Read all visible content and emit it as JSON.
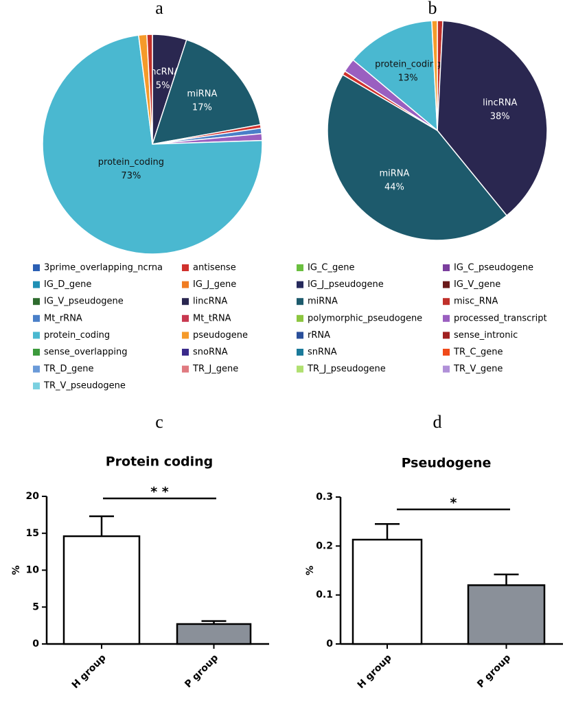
{
  "chart_data": [
    {
      "type": "pie",
      "label": "a",
      "categories": [
        "lincRNA",
        "miRNA",
        "antisense",
        "Mt_rRNA",
        "processed_transcript",
        "protein_coding",
        "pseudogene",
        "misc_RNA"
      ],
      "values": [
        5,
        17,
        0.5,
        0.8,
        1,
        73,
        1.2,
        0.8
      ],
      "value_labels": [
        "5%",
        "17%",
        null,
        null,
        null,
        "73%",
        null,
        null
      ],
      "colors": [
        "#2a2750",
        "#1d5a6c",
        "#d0312d",
        "#4a7fc8",
        "#9a5fc0",
        "#4ab8d0",
        "#f59a2a",
        "#c0302a"
      ]
    },
    {
      "type": "pie",
      "label": "b",
      "categories": [
        "misc_RNA",
        "lincRNA",
        "miRNA",
        "antisense",
        "processed_transcript",
        "protein_coding",
        "pseudogene"
      ],
      "values": [
        0.8,
        38,
        44,
        0.6,
        2,
        13,
        0.8
      ],
      "value_labels": [
        null,
        "38%",
        "44%",
        null,
        null,
        "13%",
        null
      ],
      "colors": [
        "#c0302a",
        "#2a2750",
        "#1d5a6c",
        "#d0312d",
        "#9a5fc0",
        "#4ab8d0",
        "#f59a2a"
      ]
    },
    {
      "type": "bar",
      "label": "c",
      "title": "Protein coding",
      "y_label": "%",
      "categories": [
        "H group",
        "P group"
      ],
      "values": [
        14.6,
        2.7
      ],
      "errors": [
        2.7,
        0.4
      ],
      "colors": [
        "#ffffff",
        "#8a9099"
      ],
      "ylim": [
        0,
        20
      ],
      "yticks": [
        0,
        5,
        10,
        15,
        20
      ],
      "significance": "* *"
    },
    {
      "type": "bar",
      "label": "d",
      "title": "Pseudogene",
      "y_label": "%",
      "categories": [
        "H group",
        "P group"
      ],
      "values": [
        0.213,
        0.12
      ],
      "errors": [
        0.032,
        0.022
      ],
      "colors": [
        "#ffffff",
        "#8a9099"
      ],
      "ylim": [
        0,
        0.3
      ],
      "yticks": [
        0,
        0.1,
        0.2,
        0.3
      ],
      "significance": "*"
    }
  ],
  "legend": [
    {
      "name": "3prime_overlapping_ncrna",
      "color": "#2b5fb4"
    },
    {
      "name": "antisense",
      "color": "#d0312d"
    },
    {
      "name": "IG_C_gene",
      "color": "#6abf3f"
    },
    {
      "name": "IG_C_pseudogene",
      "color": "#7b3f9e"
    },
    {
      "name": "IG_D_gene",
      "color": "#1f8fb4"
    },
    {
      "name": "IG_J_gene",
      "color": "#f07c22"
    },
    {
      "name": "IG_J_pseudogene",
      "color": "#262a5c"
    },
    {
      "name": "IG_V_gene",
      "color": "#6b1a1a"
    },
    {
      "name": "IG_V_pseudogene",
      "color": "#2e6b2e"
    },
    {
      "name": "lincRNA",
      "color": "#2a2750"
    },
    {
      "name": "miRNA",
      "color": "#1d5a6c"
    },
    {
      "name": "misc_RNA",
      "color": "#c0302a"
    },
    {
      "name": "Mt_rRNA",
      "color": "#4a7fc8"
    },
    {
      "name": "Mt_tRNA",
      "color": "#c83850"
    },
    {
      "name": "polymorphic_pseudogene",
      "color": "#8cc63f"
    },
    {
      "name": "processed_transcript",
      "color": "#9a5fc0"
    },
    {
      "name": "protein_coding",
      "color": "#4ab8d0"
    },
    {
      "name": "pseudogene",
      "color": "#f59a2a"
    },
    {
      "name": "rRNA",
      "color": "#2a4f9a"
    },
    {
      "name": "sense_intronic",
      "color": "#a02020"
    },
    {
      "name": "sense_overlapping",
      "color": "#3c9a3c"
    },
    {
      "name": "snoRNA",
      "color": "#3a2a8a"
    },
    {
      "name": "snRNA",
      "color": "#1a7a9a"
    },
    {
      "name": "TR_C_gene",
      "color": "#f04a1a"
    },
    {
      "name": "TR_D_gene",
      "color": "#6a9ad8"
    },
    {
      "name": "TR_J_gene",
      "color": "#e07a80"
    },
    {
      "name": "TR_J_pseudogene",
      "color": "#b0e070"
    },
    {
      "name": "TR_V_gene",
      "color": "#b090d8"
    },
    {
      "name": "TR_V_pseudogene",
      "color": "#7ad0e0"
    }
  ]
}
